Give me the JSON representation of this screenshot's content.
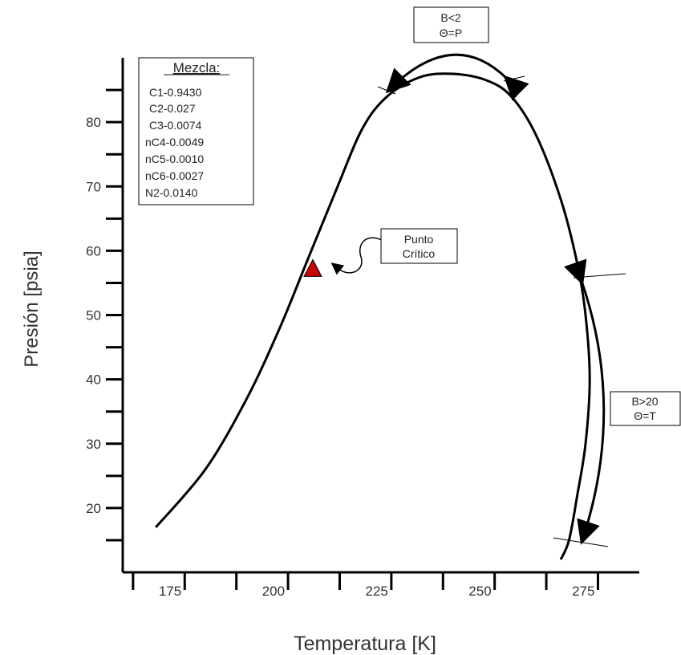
{
  "chart_data": {
    "type": "line",
    "title": "",
    "xlabel": "Temperatura [K]",
    "ylabel": "Presión [psia]",
    "xlim": [
      160,
      285
    ],
    "ylim": [
      10,
      90
    ],
    "x_ticks": [
      175,
      200,
      225,
      250,
      275
    ],
    "y_ticks": [
      20,
      30,
      40,
      50,
      60,
      70,
      80
    ],
    "grid": false,
    "series": [
      {
        "name": "",
        "color": "#000000",
        "x": [
          168,
          180,
          190,
          198,
          205,
          212,
          218,
          224,
          232,
          240,
          248,
          254,
          260,
          266,
          270,
          272,
          273,
          272,
          270,
          268,
          266
        ],
        "y": [
          17,
          26,
          37,
          48,
          59,
          70,
          79,
          84,
          87,
          87.5,
          86.5,
          84,
          78,
          68,
          58,
          50,
          40,
          30,
          22,
          15,
          12
        ]
      }
    ],
    "critical_point": {
      "x": 206,
      "y": 57,
      "color": "#cc0000"
    },
    "annotations": {
      "mixture": {
        "title": "Mezcla:",
        "items": [
          "C1-0.9430",
          "C2-0.027",
          "C3-0.0074",
          "nC4-0.0049",
          "nC5-0.0010",
          "nC6-0.0027",
          "N2-0.0140"
        ]
      },
      "critical_label": [
        "Punto",
        "Crítico"
      ],
      "top_label": [
        "B<2",
        "Θ=P"
      ],
      "right_label": [
        "B>20",
        "Θ=T"
      ]
    }
  }
}
